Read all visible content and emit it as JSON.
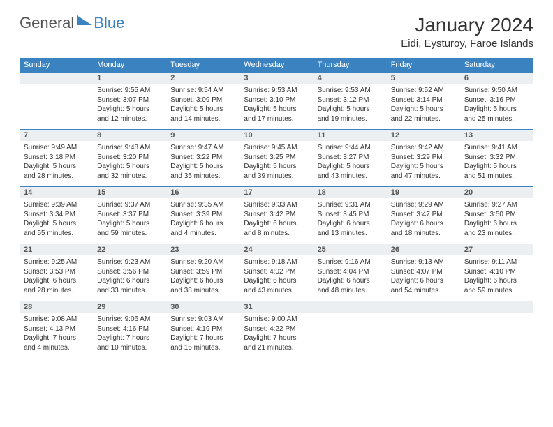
{
  "logo": {
    "general": "General",
    "blue": "Blue"
  },
  "title": "January 2024",
  "location": "Eidi, Eysturoy, Faroe Islands",
  "colors": {
    "header_bg": "#3b83c0",
    "header_text": "#ffffff",
    "daynum_bg": "#eceff1",
    "border": "#3b83c0",
    "text": "#333333"
  },
  "day_headers": [
    "Sunday",
    "Monday",
    "Tuesday",
    "Wednesday",
    "Thursday",
    "Friday",
    "Saturday"
  ],
  "weeks": [
    [
      {
        "empty": true
      },
      {
        "num": "1",
        "sunrise": "Sunrise: 9:55 AM",
        "sunset": "Sunset: 3:07 PM",
        "daylight1": "Daylight: 5 hours",
        "daylight2": "and 12 minutes."
      },
      {
        "num": "2",
        "sunrise": "Sunrise: 9:54 AM",
        "sunset": "Sunset: 3:09 PM",
        "daylight1": "Daylight: 5 hours",
        "daylight2": "and 14 minutes."
      },
      {
        "num": "3",
        "sunrise": "Sunrise: 9:53 AM",
        "sunset": "Sunset: 3:10 PM",
        "daylight1": "Daylight: 5 hours",
        "daylight2": "and 17 minutes."
      },
      {
        "num": "4",
        "sunrise": "Sunrise: 9:53 AM",
        "sunset": "Sunset: 3:12 PM",
        "daylight1": "Daylight: 5 hours",
        "daylight2": "and 19 minutes."
      },
      {
        "num": "5",
        "sunrise": "Sunrise: 9:52 AM",
        "sunset": "Sunset: 3:14 PM",
        "daylight1": "Daylight: 5 hours",
        "daylight2": "and 22 minutes."
      },
      {
        "num": "6",
        "sunrise": "Sunrise: 9:50 AM",
        "sunset": "Sunset: 3:16 PM",
        "daylight1": "Daylight: 5 hours",
        "daylight2": "and 25 minutes."
      }
    ],
    [
      {
        "num": "7",
        "sunrise": "Sunrise: 9:49 AM",
        "sunset": "Sunset: 3:18 PM",
        "daylight1": "Daylight: 5 hours",
        "daylight2": "and 28 minutes."
      },
      {
        "num": "8",
        "sunrise": "Sunrise: 9:48 AM",
        "sunset": "Sunset: 3:20 PM",
        "daylight1": "Daylight: 5 hours",
        "daylight2": "and 32 minutes."
      },
      {
        "num": "9",
        "sunrise": "Sunrise: 9:47 AM",
        "sunset": "Sunset: 3:22 PM",
        "daylight1": "Daylight: 5 hours",
        "daylight2": "and 35 minutes."
      },
      {
        "num": "10",
        "sunrise": "Sunrise: 9:45 AM",
        "sunset": "Sunset: 3:25 PM",
        "daylight1": "Daylight: 5 hours",
        "daylight2": "and 39 minutes."
      },
      {
        "num": "11",
        "sunrise": "Sunrise: 9:44 AM",
        "sunset": "Sunset: 3:27 PM",
        "daylight1": "Daylight: 5 hours",
        "daylight2": "and 43 minutes."
      },
      {
        "num": "12",
        "sunrise": "Sunrise: 9:42 AM",
        "sunset": "Sunset: 3:29 PM",
        "daylight1": "Daylight: 5 hours",
        "daylight2": "and 47 minutes."
      },
      {
        "num": "13",
        "sunrise": "Sunrise: 9:41 AM",
        "sunset": "Sunset: 3:32 PM",
        "daylight1": "Daylight: 5 hours",
        "daylight2": "and 51 minutes."
      }
    ],
    [
      {
        "num": "14",
        "sunrise": "Sunrise: 9:39 AM",
        "sunset": "Sunset: 3:34 PM",
        "daylight1": "Daylight: 5 hours",
        "daylight2": "and 55 minutes."
      },
      {
        "num": "15",
        "sunrise": "Sunrise: 9:37 AM",
        "sunset": "Sunset: 3:37 PM",
        "daylight1": "Daylight: 5 hours",
        "daylight2": "and 59 minutes."
      },
      {
        "num": "16",
        "sunrise": "Sunrise: 9:35 AM",
        "sunset": "Sunset: 3:39 PM",
        "daylight1": "Daylight: 6 hours",
        "daylight2": "and 4 minutes."
      },
      {
        "num": "17",
        "sunrise": "Sunrise: 9:33 AM",
        "sunset": "Sunset: 3:42 PM",
        "daylight1": "Daylight: 6 hours",
        "daylight2": "and 8 minutes."
      },
      {
        "num": "18",
        "sunrise": "Sunrise: 9:31 AM",
        "sunset": "Sunset: 3:45 PM",
        "daylight1": "Daylight: 6 hours",
        "daylight2": "and 13 minutes."
      },
      {
        "num": "19",
        "sunrise": "Sunrise: 9:29 AM",
        "sunset": "Sunset: 3:47 PM",
        "daylight1": "Daylight: 6 hours",
        "daylight2": "and 18 minutes."
      },
      {
        "num": "20",
        "sunrise": "Sunrise: 9:27 AM",
        "sunset": "Sunset: 3:50 PM",
        "daylight1": "Daylight: 6 hours",
        "daylight2": "and 23 minutes."
      }
    ],
    [
      {
        "num": "21",
        "sunrise": "Sunrise: 9:25 AM",
        "sunset": "Sunset: 3:53 PM",
        "daylight1": "Daylight: 6 hours",
        "daylight2": "and 28 minutes."
      },
      {
        "num": "22",
        "sunrise": "Sunrise: 9:23 AM",
        "sunset": "Sunset: 3:56 PM",
        "daylight1": "Daylight: 6 hours",
        "daylight2": "and 33 minutes."
      },
      {
        "num": "23",
        "sunrise": "Sunrise: 9:20 AM",
        "sunset": "Sunset: 3:59 PM",
        "daylight1": "Daylight: 6 hours",
        "daylight2": "and 38 minutes."
      },
      {
        "num": "24",
        "sunrise": "Sunrise: 9:18 AM",
        "sunset": "Sunset: 4:02 PM",
        "daylight1": "Daylight: 6 hours",
        "daylight2": "and 43 minutes."
      },
      {
        "num": "25",
        "sunrise": "Sunrise: 9:16 AM",
        "sunset": "Sunset: 4:04 PM",
        "daylight1": "Daylight: 6 hours",
        "daylight2": "and 48 minutes."
      },
      {
        "num": "26",
        "sunrise": "Sunrise: 9:13 AM",
        "sunset": "Sunset: 4:07 PM",
        "daylight1": "Daylight: 6 hours",
        "daylight2": "and 54 minutes."
      },
      {
        "num": "27",
        "sunrise": "Sunrise: 9:11 AM",
        "sunset": "Sunset: 4:10 PM",
        "daylight1": "Daylight: 6 hours",
        "daylight2": "and 59 minutes."
      }
    ],
    [
      {
        "num": "28",
        "sunrise": "Sunrise: 9:08 AM",
        "sunset": "Sunset: 4:13 PM",
        "daylight1": "Daylight: 7 hours",
        "daylight2": "and 4 minutes."
      },
      {
        "num": "29",
        "sunrise": "Sunrise: 9:06 AM",
        "sunset": "Sunset: 4:16 PM",
        "daylight1": "Daylight: 7 hours",
        "daylight2": "and 10 minutes."
      },
      {
        "num": "30",
        "sunrise": "Sunrise: 9:03 AM",
        "sunset": "Sunset: 4:19 PM",
        "daylight1": "Daylight: 7 hours",
        "daylight2": "and 16 minutes."
      },
      {
        "num": "31",
        "sunrise": "Sunrise: 9:00 AM",
        "sunset": "Sunset: 4:22 PM",
        "daylight1": "Daylight: 7 hours",
        "daylight2": "and 21 minutes."
      },
      {
        "empty": true
      },
      {
        "empty": true
      },
      {
        "empty": true
      }
    ]
  ]
}
